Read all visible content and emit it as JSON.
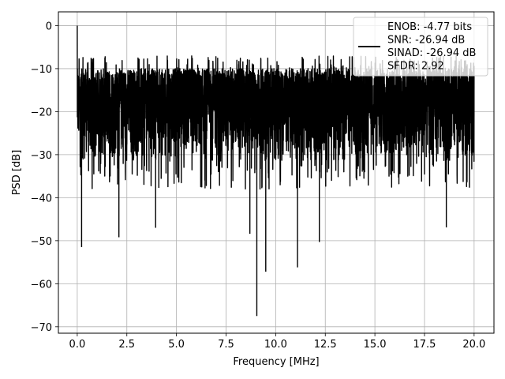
{
  "chart_data": {
    "type": "line",
    "xlabel": "Frequency [MHz]",
    "ylabel": "PSD [dB]",
    "xlim": [
      -0.95,
      21.0
    ],
    "ylim": [
      -71.5,
      3.2
    ],
    "xticks": [
      0.0,
      2.5,
      5.0,
      7.5,
      10.0,
      12.5,
      15.0,
      17.5,
      20.0
    ],
    "xtick_labels": [
      "0.0",
      "2.5",
      "5.0",
      "7.5",
      "10.0",
      "12.5",
      "15.0",
      "17.5",
      "20.0"
    ],
    "yticks": [
      0,
      -10,
      -20,
      -30,
      -40,
      -50,
      -60,
      -70
    ],
    "ytick_labels": [
      "0",
      "−10",
      "−20",
      "−30",
      "−40",
      "−50",
      "−60",
      "−70"
    ],
    "grid": true,
    "legend_position": "top-right",
    "line_color": "#000000",
    "legend": [
      "ENOB: -4.77 bits",
      "SNR: -26.94 dB",
      "SINAD: -26.94 dB",
      "SFDR: 2.92"
    ],
    "series": [
      {
        "x_range": [
          0,
          20
        ],
        "points": 4096,
        "peak": {
          "x": 0.0,
          "y": 0
        },
        "noise_band": {
          "top": -10,
          "bottom": -32,
          "max_spike": -7
        },
        "notable_dips": [
          {
            "x": 0.22,
            "y": -51.5
          },
          {
            "x": 2.1,
            "y": -49.2
          },
          {
            "x": 3.95,
            "y": -47.0
          },
          {
            "x": 8.7,
            "y": -48.4
          },
          {
            "x": 9.05,
            "y": -67.5
          },
          {
            "x": 9.5,
            "y": -57.2
          },
          {
            "x": 11.1,
            "y": -56.2
          },
          {
            "x": 12.2,
            "y": -50.3
          },
          {
            "x": 18.6,
            "y": -46.9
          }
        ]
      }
    ]
  }
}
